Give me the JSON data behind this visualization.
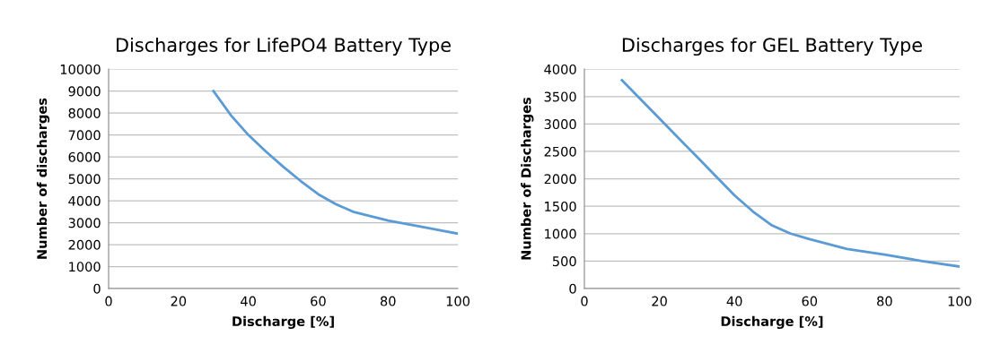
{
  "chart_data": [
    {
      "type": "line",
      "title": "Discharges for LifePO4 Battery Type",
      "xlabel": "Discharge [%]",
      "ylabel": "Number of discharges",
      "xlim": [
        0,
        100
      ],
      "xticks": [
        0,
        20,
        40,
        60,
        80,
        100
      ],
      "ylim": [
        0,
        10000
      ],
      "yticks": [
        0,
        1000,
        2000,
        3000,
        4000,
        5000,
        6000,
        7000,
        8000,
        9000,
        10000
      ],
      "grid": "y",
      "marker": "none",
      "line_style": "solid",
      "series": [
        {
          "color": "#5b9bd5",
          "x": [
            30,
            35,
            40,
            45,
            50,
            55,
            60,
            65,
            70,
            80,
            90,
            100
          ],
          "values": [
            9000,
            7900,
            7000,
            6250,
            5550,
            4900,
            4300,
            3850,
            3500,
            3100,
            2800,
            2500
          ]
        }
      ]
    },
    {
      "type": "line",
      "title": "Discharges for GEL Battery Type",
      "xlabel": "Discharge [%]",
      "ylabel": "Number of Discharges",
      "xlim": [
        0,
        100
      ],
      "xticks": [
        0,
        20,
        40,
        60,
        80,
        100
      ],
      "ylim": [
        0,
        4000
      ],
      "yticks": [
        0,
        500,
        1000,
        1500,
        2000,
        2500,
        3000,
        3500,
        4000
      ],
      "grid": "y",
      "marker": "none",
      "line_style": "solid",
      "series": [
        {
          "color": "#5b9bd5",
          "x": [
            10,
            20,
            30,
            40,
            45,
            50,
            55,
            60,
            70,
            80,
            90,
            100
          ],
          "values": [
            3800,
            3100,
            2400,
            1700,
            1400,
            1150,
            1000,
            900,
            720,
            620,
            500,
            400
          ]
        }
      ]
    }
  ]
}
